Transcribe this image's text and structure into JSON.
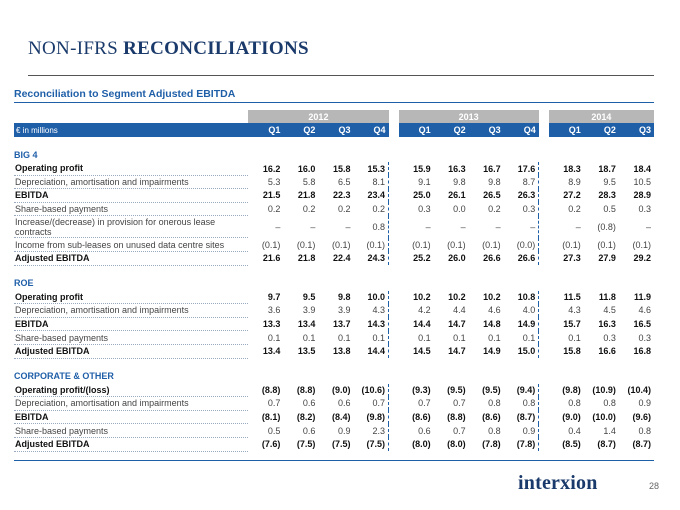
{
  "header": {
    "title_part1": "NON-IFRS",
    "title_part2": "RECONCILIATIONS",
    "subtitle": "Reconciliation to Segment Adjusted EBITDA"
  },
  "table": {
    "unit_label": "€ in millions",
    "years": [
      "2012",
      "2013",
      "2014"
    ],
    "quarters": [
      "Q1",
      "Q2",
      "Q3",
      "Q4",
      "Q1",
      "Q2",
      "Q3",
      "Q4",
      "Q1",
      "Q2",
      "Q3"
    ],
    "sections": [
      {
        "name": "BIG 4",
        "rows": [
          {
            "label": "Operating profit",
            "bold": true,
            "values": [
              "16.2",
              "16.0",
              "15.8",
              "15.3",
              "15.9",
              "16.3",
              "16.7",
              "17.6",
              "18.3",
              "18.7",
              "18.4"
            ]
          },
          {
            "label": "Depreciation, amortisation and impairments",
            "bold": false,
            "values": [
              "5.3",
              "5.8",
              "6.5",
              "8.1",
              "9.1",
              "9.8",
              "9.8",
              "8.7",
              "8.9",
              "9.5",
              "10.5"
            ]
          },
          {
            "label": "EBITDA",
            "bold": true,
            "values": [
              "21.5",
              "21.8",
              "22.3",
              "23.4",
              "25.0",
              "26.1",
              "26.5",
              "26.3",
              "27.2",
              "28.3",
              "28.9"
            ]
          },
          {
            "label": "Share-based payments",
            "bold": false,
            "values": [
              "0.2",
              "0.2",
              "0.2",
              "0.2",
              "0.3",
              "0.0",
              "0.2",
              "0.3",
              "0.2",
              "0.5",
              "0.3"
            ]
          },
          {
            "label": "Increase/(decrease) in provision for onerous lease contracts",
            "bold": false,
            "double": true,
            "values": [
              "–",
              "–",
              "–",
              "0.8",
              "–",
              "–",
              "–",
              "–",
              "–",
              "(0.8)",
              "–"
            ]
          },
          {
            "label": "Income from sub-leases on unused data centre sites",
            "bold": false,
            "values": [
              "(0.1)",
              "(0.1)",
              "(0.1)",
              "(0.1)",
              "(0.1)",
              "(0.1)",
              "(0.1)",
              "(0.0)",
              "(0.1)",
              "(0.1)",
              "(0.1)"
            ]
          },
          {
            "label": "Adjusted EBITDA",
            "bold": true,
            "values": [
              "21.6",
              "21.8",
              "22.4",
              "24.3",
              "25.2",
              "26.0",
              "26.6",
              "26.6",
              "27.3",
              "27.9",
              "29.2"
            ]
          }
        ]
      },
      {
        "name": "ROE",
        "rows": [
          {
            "label": "Operating profit",
            "bold": true,
            "values": [
              "9.7",
              "9.5",
              "9.8",
              "10.0",
              "10.2",
              "10.2",
              "10.2",
              "10.8",
              "11.5",
              "11.8",
              "11.9"
            ]
          },
          {
            "label": "Depreciation, amortisation and impairments",
            "bold": false,
            "values": [
              "3.6",
              "3.9",
              "3.9",
              "4.3",
              "4.2",
              "4.4",
              "4.6",
              "4.0",
              "4.3",
              "4.5",
              "4.6"
            ]
          },
          {
            "label": "EBITDA",
            "bold": true,
            "values": [
              "13.3",
              "13.4",
              "13.7",
              "14.3",
              "14.4",
              "14.7",
              "14.8",
              "14.9",
              "15.7",
              "16.3",
              "16.5"
            ]
          },
          {
            "label": "Share-based payments",
            "bold": false,
            "values": [
              "0.1",
              "0.1",
              "0.1",
              "0.1",
              "0.1",
              "0.1",
              "0.1",
              "0.1",
              "0.1",
              "0.3",
              "0.3"
            ]
          },
          {
            "label": "Adjusted EBITDA",
            "bold": true,
            "values": [
              "13.4",
              "13.5",
              "13.8",
              "14.4",
              "14.5",
              "14.7",
              "14.9",
              "15.0",
              "15.8",
              "16.6",
              "16.8"
            ]
          }
        ]
      },
      {
        "name": "CORPORATE & OTHER",
        "rows": [
          {
            "label": "Operating profit/(loss)",
            "bold": true,
            "values": [
              "(8.8)",
              "(8.8)",
              "(9.0)",
              "(10.6)",
              "(9.3)",
              "(9.5)",
              "(9.5)",
              "(9.4)",
              "(9.8)",
              "(10.9)",
              "(10.4)"
            ]
          },
          {
            "label": "Depreciation, amortisation and impairments",
            "bold": false,
            "values": [
              "0.7",
              "0.6",
              "0.6",
              "0.7",
              "0.7",
              "0.7",
              "0.8",
              "0.8",
              "0.8",
              "0.8",
              "0.9"
            ]
          },
          {
            "label": "EBITDA",
            "bold": true,
            "values": [
              "(8.1)",
              "(8.2)",
              "(8.4)",
              "(9.8)",
              "(8.6)",
              "(8.8)",
              "(8.6)",
              "(8.7)",
              "(9.0)",
              "(10.0)",
              "(9.6)"
            ]
          },
          {
            "label": "Share-based payments",
            "bold": false,
            "values": [
              "0.5",
              "0.6",
              "0.9",
              "2.3",
              "0.6",
              "0.7",
              "0.8",
              "0.9",
              "0.4",
              "1.4",
              "0.8"
            ]
          },
          {
            "label": "Adjusted EBITDA",
            "bold": true,
            "values": [
              "(7.6)",
              "(7.5)",
              "(7.5)",
              "(7.5)",
              "(8.0)",
              "(8.0)",
              "(7.8)",
              "(7.8)",
              "(8.5)",
              "(8.7)",
              "(8.7)"
            ]
          }
        ]
      }
    ]
  },
  "footer": {
    "brand": "interxion",
    "page_number": "28"
  },
  "colors": {
    "accent_blue": "#1f5fa8",
    "title_navy": "#1a3a6b",
    "year_band_grey": "#b7b7b7"
  }
}
